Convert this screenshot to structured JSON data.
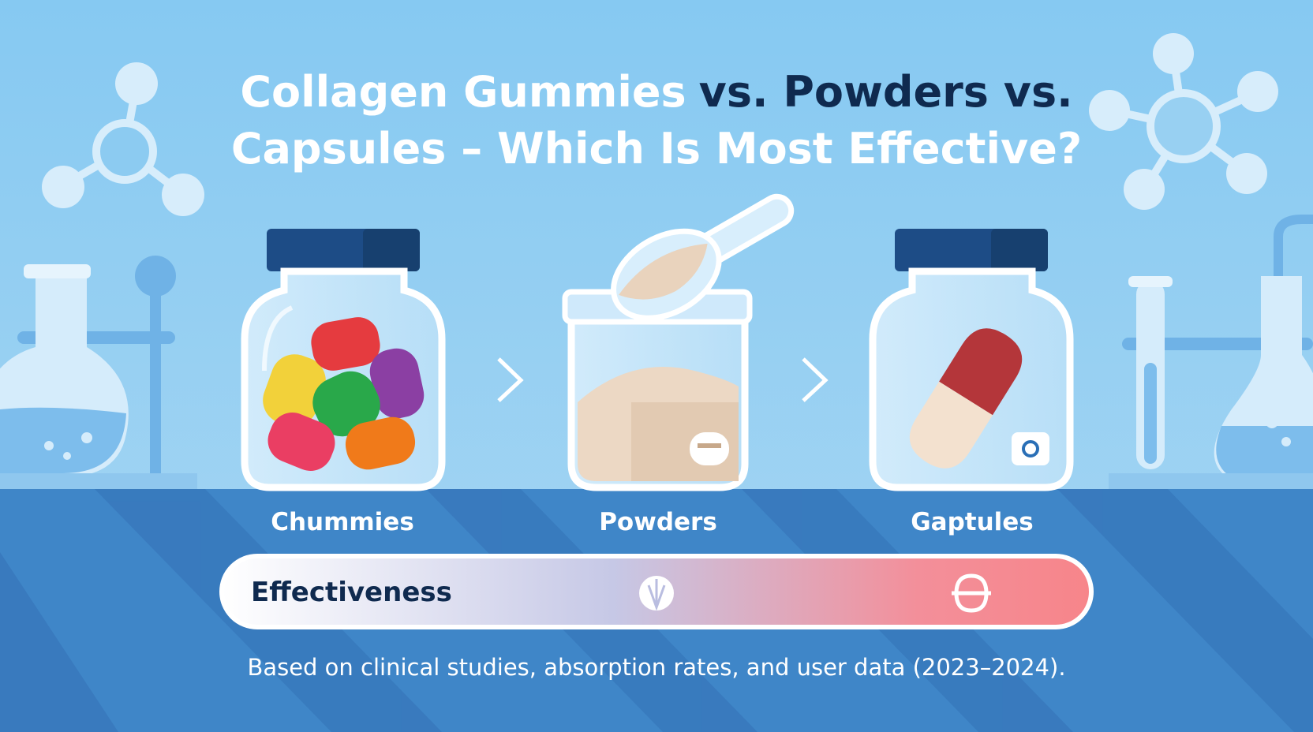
{
  "title": [
    "Collagen Gummies",
    "vs. Powders vs.",
    "Capsules – Which Is Most Effective?"
  ],
  "products": [
    {
      "label": "Chummies"
    },
    {
      "label": "Powders"
    },
    {
      "label": "Gaptules"
    }
  ],
  "scale": {
    "label": "Effectiveness"
  },
  "footnote": "Based on clinical studies, absorption rates, and user data (2023–2024)."
}
